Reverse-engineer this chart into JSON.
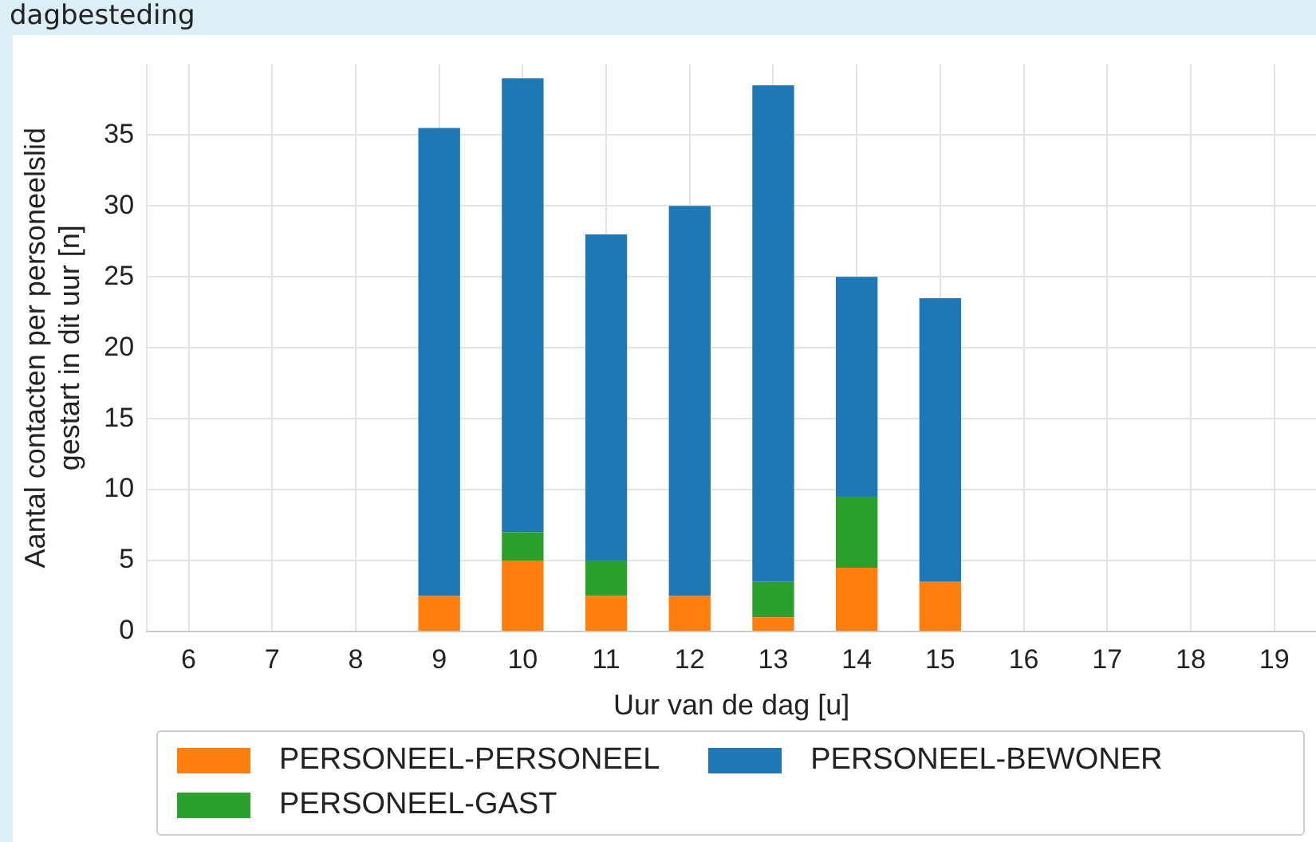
{
  "chart_data": {
    "type": "bar",
    "title": "dagbesteding",
    "xlabel": "Uur van de dag [u]",
    "ylabel": "Aantal contacten per personeelslid\ngestart in dit uur [n]",
    "categories": [
      "6",
      "7",
      "8",
      "9",
      "10",
      "11",
      "12",
      "13",
      "14",
      "15",
      "16",
      "17",
      "18",
      "19"
    ],
    "stacked": true,
    "grid": true,
    "legend": "bottom",
    "ylim": [
      0,
      40
    ],
    "yticks": [
      0,
      5,
      10,
      15,
      20,
      25,
      30,
      35
    ],
    "series": [
      {
        "name": "PERSONEEL-PERSONEEL",
        "color": "#ff7f0e",
        "values": [
          null,
          null,
          null,
          2.5,
          5,
          2.5,
          2.5,
          1,
          4.5,
          3.5,
          null,
          null,
          null,
          null
        ]
      },
      {
        "name": "PERSONEEL-GAST",
        "color": "#2ca02c",
        "values": [
          null,
          null,
          null,
          0,
          2,
          2.5,
          0,
          2.5,
          5,
          0,
          null,
          null,
          null,
          null
        ]
      },
      {
        "name": "PERSONEEL-BEWONER",
        "color": "#1f77b4",
        "values": [
          null,
          null,
          null,
          33,
          32,
          23,
          27.5,
          35,
          15.5,
          20,
          null,
          null,
          null,
          null
        ]
      }
    ]
  }
}
